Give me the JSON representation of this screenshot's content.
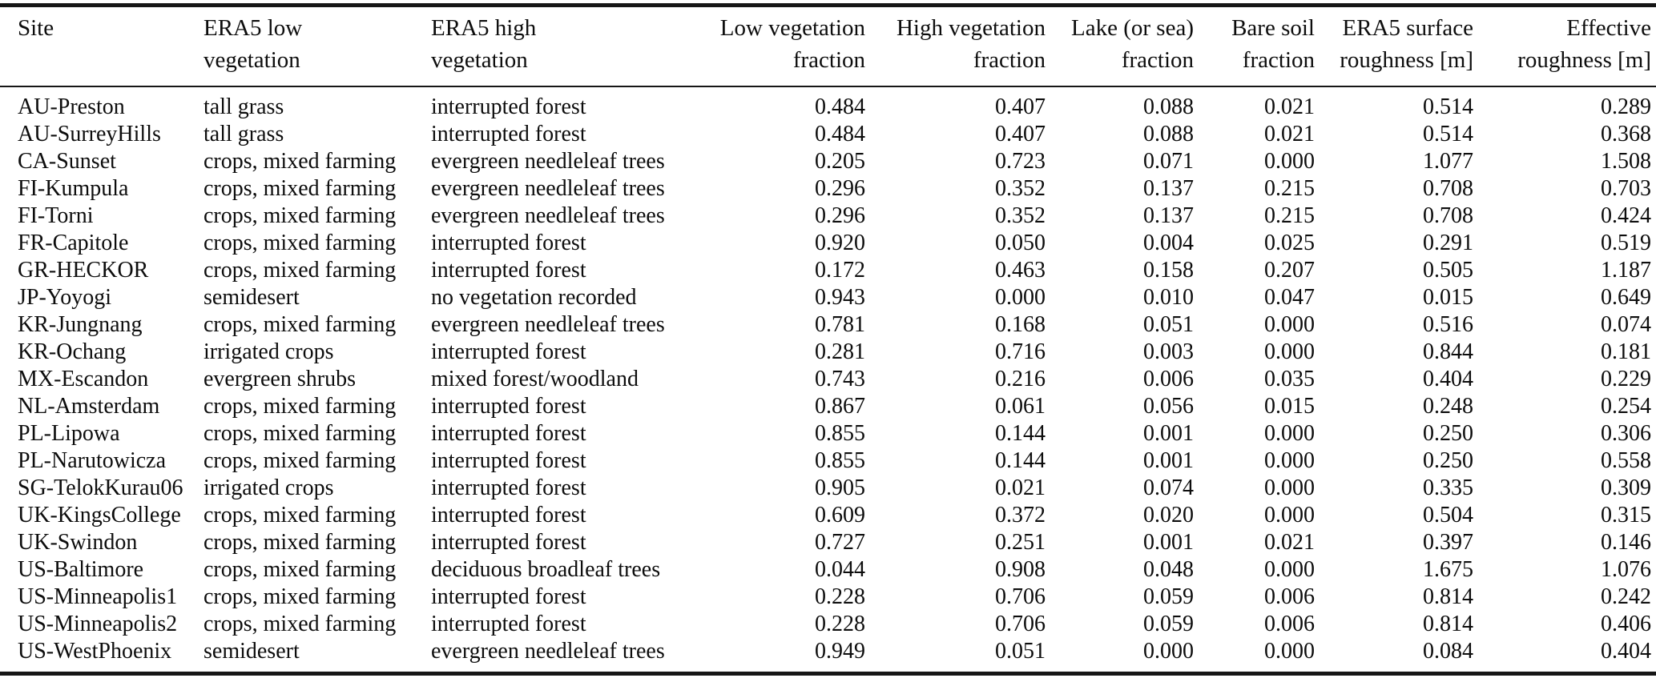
{
  "table": {
    "columns": [
      {
        "key": "site",
        "label": "Site",
        "align": "left"
      },
      {
        "key": "era5_low_vegetation",
        "label": "ERA5 low\nvegetation",
        "align": "left"
      },
      {
        "key": "era5_high_vegetation",
        "label": "ERA5 high\nvegetation",
        "align": "left"
      },
      {
        "key": "low_vegetation_fraction",
        "label": "Low vegetation\nfraction",
        "align": "right"
      },
      {
        "key": "high_vegetation_fraction",
        "label": "High vegetation\nfraction",
        "align": "right"
      },
      {
        "key": "lake_or_sea_fraction",
        "label": "Lake (or sea)\nfraction",
        "align": "right"
      },
      {
        "key": "bare_soil_fraction",
        "label": "Bare soil\nfraction",
        "align": "right"
      },
      {
        "key": "era5_surface_roughness",
        "label": "ERA5 surface\nroughness [m]",
        "align": "right"
      },
      {
        "key": "effective_roughness",
        "label": "Effective\nroughness [m]",
        "align": "right"
      }
    ],
    "rows": [
      {
        "site": "AU-Preston",
        "era5_low_vegetation": "tall grass",
        "era5_high_vegetation": "interrupted forest",
        "low_vegetation_fraction": "0.484",
        "high_vegetation_fraction": "0.407",
        "lake_or_sea_fraction": "0.088",
        "bare_soil_fraction": "0.021",
        "era5_surface_roughness": "0.514",
        "effective_roughness": "0.289"
      },
      {
        "site": "AU-SurreyHills",
        "era5_low_vegetation": "tall grass",
        "era5_high_vegetation": "interrupted forest",
        "low_vegetation_fraction": "0.484",
        "high_vegetation_fraction": "0.407",
        "lake_or_sea_fraction": "0.088",
        "bare_soil_fraction": "0.021",
        "era5_surface_roughness": "0.514",
        "effective_roughness": "0.368"
      },
      {
        "site": "CA-Sunset",
        "era5_low_vegetation": "crops, mixed farming",
        "era5_high_vegetation": "evergreen needleleaf trees",
        "low_vegetation_fraction": "0.205",
        "high_vegetation_fraction": "0.723",
        "lake_or_sea_fraction": "0.071",
        "bare_soil_fraction": "0.000",
        "era5_surface_roughness": "1.077",
        "effective_roughness": "1.508"
      },
      {
        "site": "FI-Kumpula",
        "era5_low_vegetation": "crops, mixed farming",
        "era5_high_vegetation": "evergreen needleleaf trees",
        "low_vegetation_fraction": "0.296",
        "high_vegetation_fraction": "0.352",
        "lake_or_sea_fraction": "0.137",
        "bare_soil_fraction": "0.215",
        "era5_surface_roughness": "0.708",
        "effective_roughness": "0.703"
      },
      {
        "site": "FI-Torni",
        "era5_low_vegetation": "crops, mixed farming",
        "era5_high_vegetation": "evergreen needleleaf trees",
        "low_vegetation_fraction": "0.296",
        "high_vegetation_fraction": "0.352",
        "lake_or_sea_fraction": "0.137",
        "bare_soil_fraction": "0.215",
        "era5_surface_roughness": "0.708",
        "effective_roughness": "0.424"
      },
      {
        "site": "FR-Capitole",
        "era5_low_vegetation": "crops, mixed farming",
        "era5_high_vegetation": "interrupted forest",
        "low_vegetation_fraction": "0.920",
        "high_vegetation_fraction": "0.050",
        "lake_or_sea_fraction": "0.004",
        "bare_soil_fraction": "0.025",
        "era5_surface_roughness": "0.291",
        "effective_roughness": "0.519"
      },
      {
        "site": "GR-HECKOR",
        "era5_low_vegetation": "crops, mixed farming",
        "era5_high_vegetation": "interrupted forest",
        "low_vegetation_fraction": "0.172",
        "high_vegetation_fraction": "0.463",
        "lake_or_sea_fraction": "0.158",
        "bare_soil_fraction": "0.207",
        "era5_surface_roughness": "0.505",
        "effective_roughness": "1.187"
      },
      {
        "site": "JP-Yoyogi",
        "era5_low_vegetation": "semidesert",
        "era5_high_vegetation": "no vegetation recorded",
        "low_vegetation_fraction": "0.943",
        "high_vegetation_fraction": "0.000",
        "lake_or_sea_fraction": "0.010",
        "bare_soil_fraction": "0.047",
        "era5_surface_roughness": "0.015",
        "effective_roughness": "0.649"
      },
      {
        "site": "KR-Jungnang",
        "era5_low_vegetation": "crops, mixed farming",
        "era5_high_vegetation": "evergreen needleleaf trees",
        "low_vegetation_fraction": "0.781",
        "high_vegetation_fraction": "0.168",
        "lake_or_sea_fraction": "0.051",
        "bare_soil_fraction": "0.000",
        "era5_surface_roughness": "0.516",
        "effective_roughness": "0.074"
      },
      {
        "site": "KR-Ochang",
        "era5_low_vegetation": "irrigated crops",
        "era5_high_vegetation": "interrupted forest",
        "low_vegetation_fraction": "0.281",
        "high_vegetation_fraction": "0.716",
        "lake_or_sea_fraction": "0.003",
        "bare_soil_fraction": "0.000",
        "era5_surface_roughness": "0.844",
        "effective_roughness": "0.181"
      },
      {
        "site": "MX-Escandon",
        "era5_low_vegetation": "evergreen shrubs",
        "era5_high_vegetation": "mixed forest/woodland",
        "low_vegetation_fraction": "0.743",
        "high_vegetation_fraction": "0.216",
        "lake_or_sea_fraction": "0.006",
        "bare_soil_fraction": "0.035",
        "era5_surface_roughness": "0.404",
        "effective_roughness": "0.229"
      },
      {
        "site": "NL-Amsterdam",
        "era5_low_vegetation": "crops, mixed farming",
        "era5_high_vegetation": "interrupted forest",
        "low_vegetation_fraction": "0.867",
        "high_vegetation_fraction": "0.061",
        "lake_or_sea_fraction": "0.056",
        "bare_soil_fraction": "0.015",
        "era5_surface_roughness": "0.248",
        "effective_roughness": "0.254"
      },
      {
        "site": "PL-Lipowa",
        "era5_low_vegetation": "crops, mixed farming",
        "era5_high_vegetation": "interrupted forest",
        "low_vegetation_fraction": "0.855",
        "high_vegetation_fraction": "0.144",
        "lake_or_sea_fraction": "0.001",
        "bare_soil_fraction": "0.000",
        "era5_surface_roughness": "0.250",
        "effective_roughness": "0.306"
      },
      {
        "site": "PL-Narutowicza",
        "era5_low_vegetation": "crops, mixed farming",
        "era5_high_vegetation": "interrupted forest",
        "low_vegetation_fraction": "0.855",
        "high_vegetation_fraction": "0.144",
        "lake_or_sea_fraction": "0.001",
        "bare_soil_fraction": "0.000",
        "era5_surface_roughness": "0.250",
        "effective_roughness": "0.558"
      },
      {
        "site": "SG-TelokKurau06",
        "era5_low_vegetation": "irrigated crops",
        "era5_high_vegetation": "interrupted forest",
        "low_vegetation_fraction": "0.905",
        "high_vegetation_fraction": "0.021",
        "lake_or_sea_fraction": "0.074",
        "bare_soil_fraction": "0.000",
        "era5_surface_roughness": "0.335",
        "effective_roughness": "0.309"
      },
      {
        "site": "UK-KingsCollege",
        "era5_low_vegetation": "crops, mixed farming",
        "era5_high_vegetation": "interrupted forest",
        "low_vegetation_fraction": "0.609",
        "high_vegetation_fraction": "0.372",
        "lake_or_sea_fraction": "0.020",
        "bare_soil_fraction": "0.000",
        "era5_surface_roughness": "0.504",
        "effective_roughness": "0.315"
      },
      {
        "site": "UK-Swindon",
        "era5_low_vegetation": "crops, mixed farming",
        "era5_high_vegetation": "interrupted forest",
        "low_vegetation_fraction": "0.727",
        "high_vegetation_fraction": "0.251",
        "lake_or_sea_fraction": "0.001",
        "bare_soil_fraction": "0.021",
        "era5_surface_roughness": "0.397",
        "effective_roughness": "0.146"
      },
      {
        "site": "US-Baltimore",
        "era5_low_vegetation": "crops, mixed farming",
        "era5_high_vegetation": "deciduous broadleaf trees",
        "low_vegetation_fraction": "0.044",
        "high_vegetation_fraction": "0.908",
        "lake_or_sea_fraction": "0.048",
        "bare_soil_fraction": "0.000",
        "era5_surface_roughness": "1.675",
        "effective_roughness": "1.076"
      },
      {
        "site": "US-Minneapolis1",
        "era5_low_vegetation": "crops, mixed farming",
        "era5_high_vegetation": "interrupted forest",
        "low_vegetation_fraction": "0.228",
        "high_vegetation_fraction": "0.706",
        "lake_or_sea_fraction": "0.059",
        "bare_soil_fraction": "0.006",
        "era5_surface_roughness": "0.814",
        "effective_roughness": "0.242"
      },
      {
        "site": "US-Minneapolis2",
        "era5_low_vegetation": "crops, mixed farming",
        "era5_high_vegetation": "interrupted forest",
        "low_vegetation_fraction": "0.228",
        "high_vegetation_fraction": "0.706",
        "lake_or_sea_fraction": "0.059",
        "bare_soil_fraction": "0.006",
        "era5_surface_roughness": "0.814",
        "effective_roughness": "0.406"
      },
      {
        "site": "US-WestPhoenix",
        "era5_low_vegetation": "semidesert",
        "era5_high_vegetation": "evergreen needleleaf trees",
        "low_vegetation_fraction": "0.949",
        "high_vegetation_fraction": "0.051",
        "lake_or_sea_fraction": "0.000",
        "bare_soil_fraction": "0.000",
        "era5_surface_roughness": "0.084",
        "effective_roughness": "0.404"
      }
    ]
  }
}
